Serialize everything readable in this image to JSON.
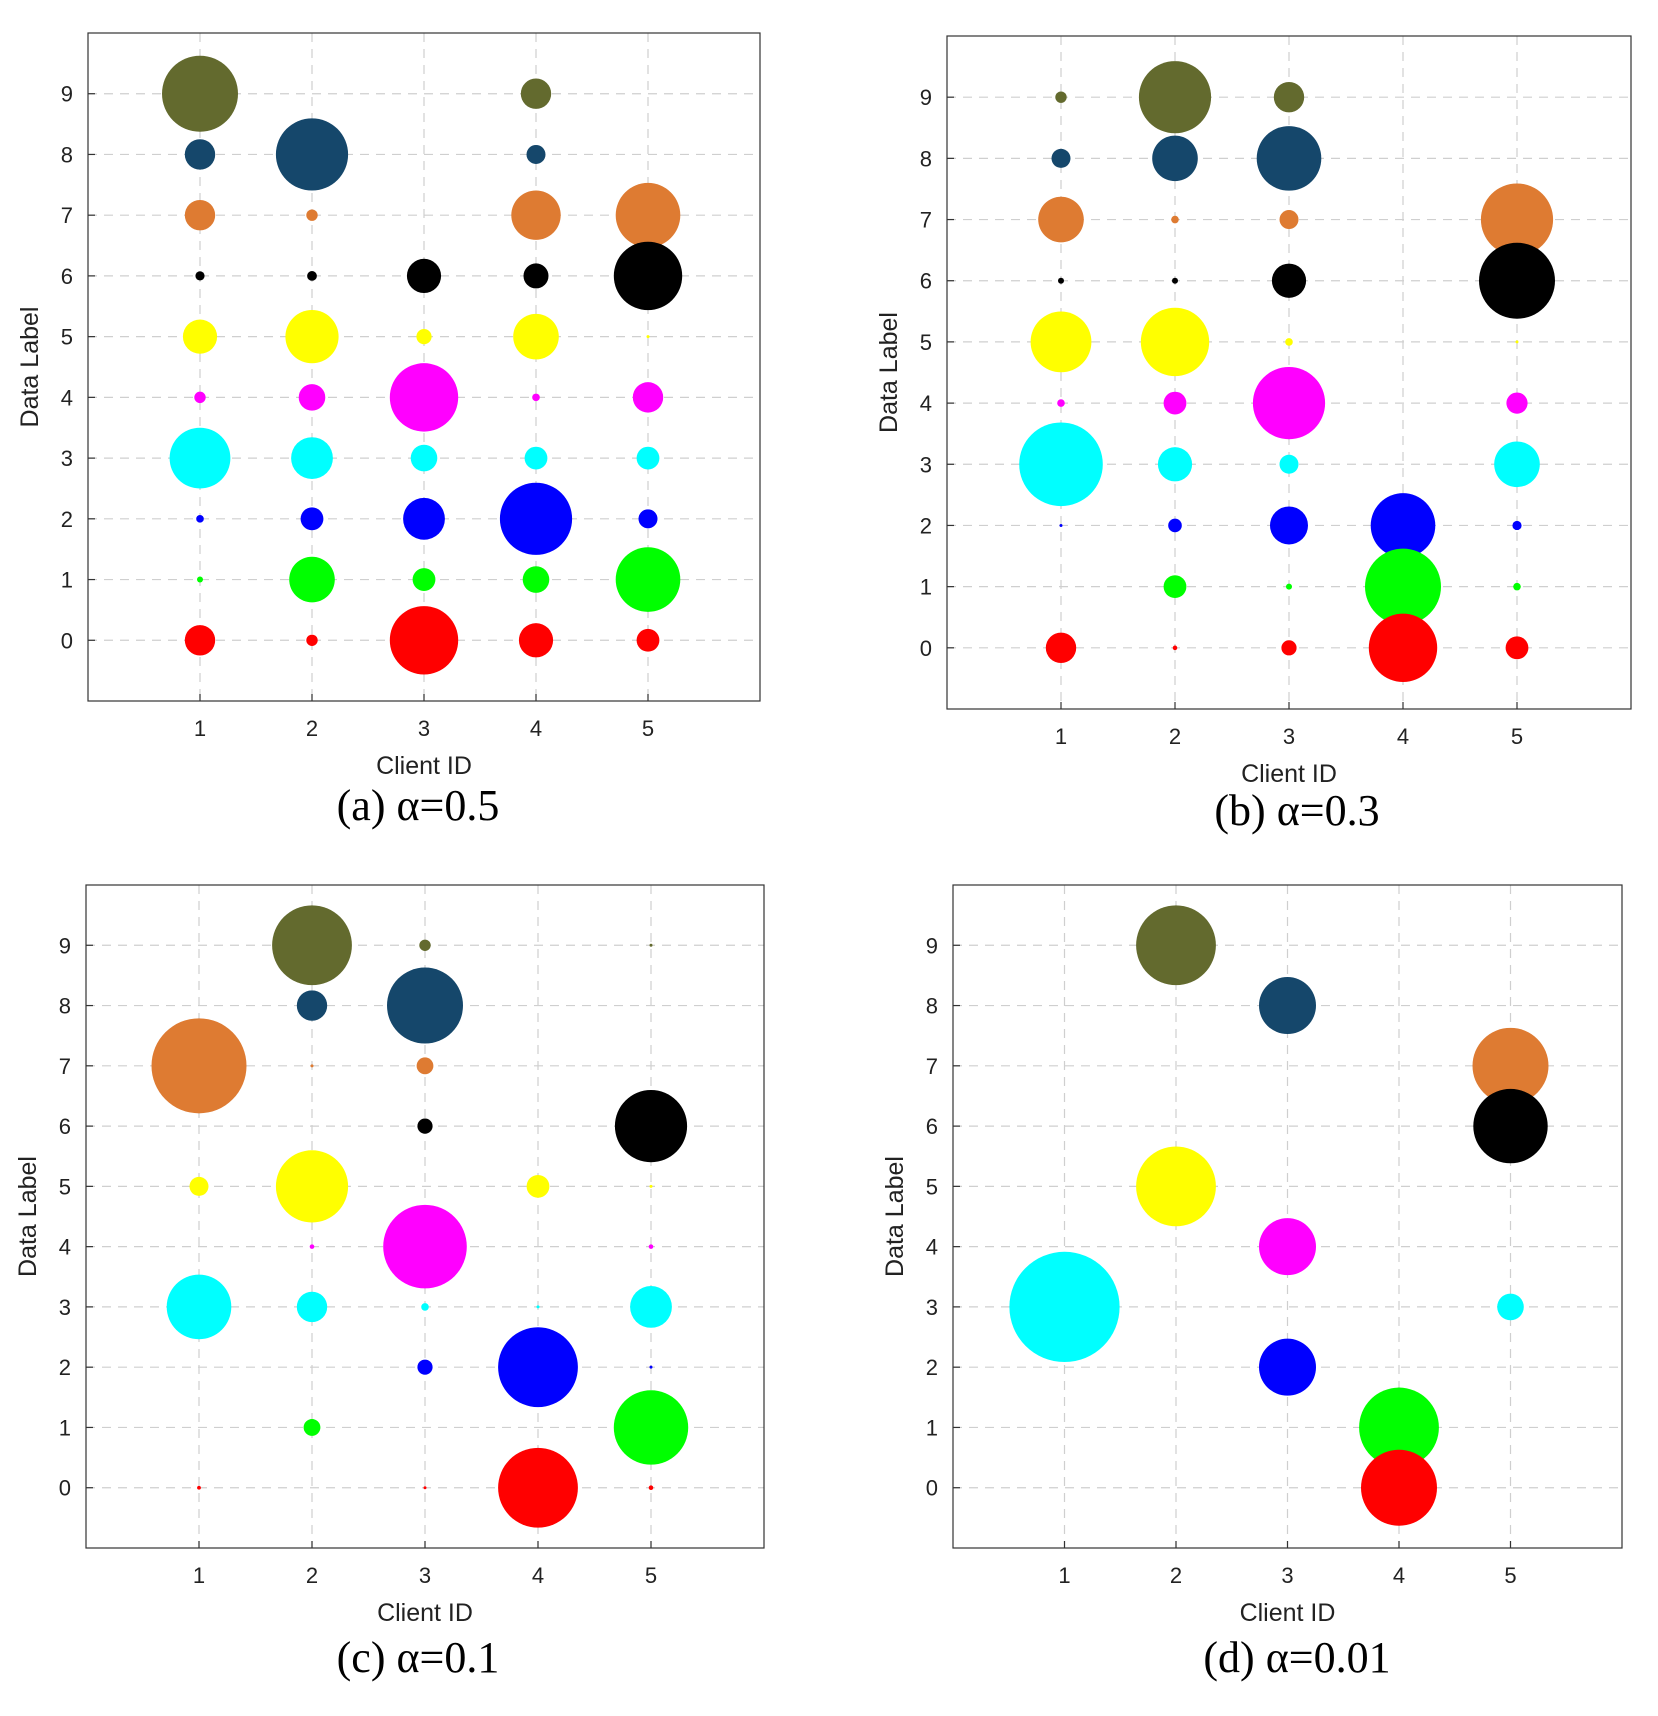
{
  "colors": {
    "0": "#ff0000",
    "1": "#00ff00",
    "2": "#0000ff",
    "3": "#00ffff",
    "4": "#ff00ff",
    "5": "#ffff00",
    "6": "#000000",
    "7": "#de7b32",
    "8": "#15476b",
    "9": "#636a2e"
  },
  "chart_data": [
    {
      "type": "scatter",
      "caption": "(a) α=0.5",
      "xlabel": "Client ID",
      "ylabel": "Data Label",
      "x_ticks": [
        "1",
        "2",
        "3",
        "4",
        "5"
      ],
      "y_ticks": [
        "0",
        "1",
        "2",
        "3",
        "4",
        "5",
        "6",
        "7",
        "8",
        "9"
      ],
      "xlim": [
        0,
        6
      ],
      "ylim": [
        -1,
        10
      ],
      "grid": true,
      "size_encoding": "marker size = relative share of each label on a client",
      "points": [
        {
          "client": 1,
          "label": 9,
          "size": 1.0
        },
        {
          "client": 1,
          "label": 8,
          "size": 0.4
        },
        {
          "client": 1,
          "label": 7,
          "size": 0.4
        },
        {
          "client": 1,
          "label": 6,
          "size": 0.12
        },
        {
          "client": 1,
          "label": 5,
          "size": 0.45
        },
        {
          "client": 1,
          "label": 4,
          "size": 0.15
        },
        {
          "client": 1,
          "label": 3,
          "size": 0.8
        },
        {
          "client": 1,
          "label": 2,
          "size": 0.1
        },
        {
          "client": 1,
          "label": 1,
          "size": 0.08
        },
        {
          "client": 1,
          "label": 0,
          "size": 0.4
        },
        {
          "client": 2,
          "label": 8,
          "size": 0.95
        },
        {
          "client": 2,
          "label": 7,
          "size": 0.15
        },
        {
          "client": 2,
          "label": 6,
          "size": 0.13
        },
        {
          "client": 2,
          "label": 5,
          "size": 0.7
        },
        {
          "client": 2,
          "label": 4,
          "size": 0.35
        },
        {
          "client": 2,
          "label": 3,
          "size": 0.55
        },
        {
          "client": 2,
          "label": 2,
          "size": 0.3
        },
        {
          "client": 2,
          "label": 1,
          "size": 0.6
        },
        {
          "client": 2,
          "label": 0,
          "size": 0.15
        },
        {
          "client": 3,
          "label": 6,
          "size": 0.45
        },
        {
          "client": 3,
          "label": 5,
          "size": 0.2
        },
        {
          "client": 3,
          "label": 4,
          "size": 0.9
        },
        {
          "client": 3,
          "label": 3,
          "size": 0.35
        },
        {
          "client": 3,
          "label": 2,
          "size": 0.55
        },
        {
          "client": 3,
          "label": 1,
          "size": 0.3
        },
        {
          "client": 3,
          "label": 0,
          "size": 0.9
        },
        {
          "client": 4,
          "label": 9,
          "size": 0.4
        },
        {
          "client": 4,
          "label": 8,
          "size": 0.25
        },
        {
          "client": 4,
          "label": 7,
          "size": 0.65
        },
        {
          "client": 4,
          "label": 6,
          "size": 0.33
        },
        {
          "client": 4,
          "label": 5,
          "size": 0.6
        },
        {
          "client": 4,
          "label": 4,
          "size": 0.1
        },
        {
          "client": 4,
          "label": 3,
          "size": 0.3
        },
        {
          "client": 4,
          "label": 2,
          "size": 0.95
        },
        {
          "client": 4,
          "label": 1,
          "size": 0.35
        },
        {
          "client": 4,
          "label": 0,
          "size": 0.45
        },
        {
          "client": 5,
          "label": 7,
          "size": 0.85
        },
        {
          "client": 5,
          "label": 6,
          "size": 0.9
        },
        {
          "client": 5,
          "label": 5,
          "size": 0.03
        },
        {
          "client": 5,
          "label": 4,
          "size": 0.4
        },
        {
          "client": 5,
          "label": 3,
          "size": 0.3
        },
        {
          "client": 5,
          "label": 2,
          "size": 0.25
        },
        {
          "client": 5,
          "label": 1,
          "size": 0.85
        },
        {
          "client": 5,
          "label": 0,
          "size": 0.3
        }
      ]
    },
    {
      "type": "scatter",
      "caption": "(b) α=0.3",
      "xlabel": "Client ID",
      "ylabel": "Data Label",
      "x_ticks": [
        "1",
        "2",
        "3",
        "4",
        "5"
      ],
      "y_ticks": [
        "0",
        "1",
        "2",
        "3",
        "4",
        "5",
        "6",
        "7",
        "8",
        "9"
      ],
      "xlim": [
        0,
        6
      ],
      "ylim": [
        -1,
        10
      ],
      "grid": true,
      "points": [
        {
          "client": 1,
          "label": 9,
          "size": 0.15
        },
        {
          "client": 1,
          "label": 8,
          "size": 0.25
        },
        {
          "client": 1,
          "label": 7,
          "size": 0.6
        },
        {
          "client": 1,
          "label": 6,
          "size": 0.08
        },
        {
          "client": 1,
          "label": 5,
          "size": 0.8
        },
        {
          "client": 1,
          "label": 4,
          "size": 0.1
        },
        {
          "client": 1,
          "label": 3,
          "size": 1.1
        },
        {
          "client": 1,
          "label": 2,
          "size": 0.04
        },
        {
          "client": 1,
          "label": 0,
          "size": 0.4
        },
        {
          "client": 2,
          "label": 9,
          "size": 0.95
        },
        {
          "client": 2,
          "label": 8,
          "size": 0.6
        },
        {
          "client": 2,
          "label": 7,
          "size": 0.1
        },
        {
          "client": 2,
          "label": 6,
          "size": 0.08
        },
        {
          "client": 2,
          "label": 5,
          "size": 0.9
        },
        {
          "client": 2,
          "label": 4,
          "size": 0.3
        },
        {
          "client": 2,
          "label": 3,
          "size": 0.45
        },
        {
          "client": 2,
          "label": 2,
          "size": 0.18
        },
        {
          "client": 2,
          "label": 1,
          "size": 0.3
        },
        {
          "client": 2,
          "label": 0,
          "size": 0.06
        },
        {
          "client": 3,
          "label": 9,
          "size": 0.4
        },
        {
          "client": 3,
          "label": 8,
          "size": 0.85
        },
        {
          "client": 3,
          "label": 7,
          "size": 0.25
        },
        {
          "client": 3,
          "label": 6,
          "size": 0.45
        },
        {
          "client": 3,
          "label": 5,
          "size": 0.1
        },
        {
          "client": 3,
          "label": 4,
          "size": 0.95
        },
        {
          "client": 3,
          "label": 3,
          "size": 0.25
        },
        {
          "client": 3,
          "label": 2,
          "size": 0.5
        },
        {
          "client": 3,
          "label": 1,
          "size": 0.08
        },
        {
          "client": 3,
          "label": 0,
          "size": 0.2
        },
        {
          "client": 4,
          "label": 2,
          "size": 0.85
        },
        {
          "client": 4,
          "label": 1,
          "size": 1.0
        },
        {
          "client": 4,
          "label": 0,
          "size": 0.9
        },
        {
          "client": 5,
          "label": 7,
          "size": 0.95
        },
        {
          "client": 5,
          "label": 6,
          "size": 1.0
        },
        {
          "client": 5,
          "label": 5,
          "size": 0.02
        },
        {
          "client": 5,
          "label": 4,
          "size": 0.28
        },
        {
          "client": 5,
          "label": 3,
          "size": 0.6
        },
        {
          "client": 5,
          "label": 2,
          "size": 0.12
        },
        {
          "client": 5,
          "label": 1,
          "size": 0.1
        },
        {
          "client": 5,
          "label": 0,
          "size": 0.3
        }
      ]
    },
    {
      "type": "scatter",
      "caption": "(c) α=0.1",
      "xlabel": "Client ID",
      "ylabel": "Data Label",
      "x_ticks": [
        "1",
        "2",
        "3",
        "4",
        "5"
      ],
      "y_ticks": [
        "0",
        "1",
        "2",
        "3",
        "4",
        "5",
        "6",
        "7",
        "8",
        "9"
      ],
      "xlim": [
        0,
        6
      ],
      "ylim": [
        -1,
        10
      ],
      "grid": true,
      "points": [
        {
          "client": 1,
          "label": 7,
          "size": 1.25
        },
        {
          "client": 1,
          "label": 5,
          "size": 0.25
        },
        {
          "client": 1,
          "label": 3,
          "size": 0.85
        },
        {
          "client": 1,
          "label": 0,
          "size": 0.05
        },
        {
          "client": 2,
          "label": 9,
          "size": 1.05
        },
        {
          "client": 2,
          "label": 8,
          "size": 0.4
        },
        {
          "client": 2,
          "label": 7,
          "size": 0.04
        },
        {
          "client": 2,
          "label": 5,
          "size": 0.95
        },
        {
          "client": 2,
          "label": 4,
          "size": 0.06
        },
        {
          "client": 2,
          "label": 3,
          "size": 0.4
        },
        {
          "client": 2,
          "label": 1,
          "size": 0.22
        },
        {
          "client": 3,
          "label": 9,
          "size": 0.15
        },
        {
          "client": 3,
          "label": 8,
          "size": 1.0
        },
        {
          "client": 3,
          "label": 7,
          "size": 0.22
        },
        {
          "client": 3,
          "label": 6,
          "size": 0.2
        },
        {
          "client": 3,
          "label": 4,
          "size": 1.1
        },
        {
          "client": 3,
          "label": 3,
          "size": 0.1
        },
        {
          "client": 3,
          "label": 2,
          "size": 0.2
        },
        {
          "client": 3,
          "label": 0,
          "size": 0.04
        },
        {
          "client": 4,
          "label": 5,
          "size": 0.3
        },
        {
          "client": 4,
          "label": 3,
          "size": 0.04
        },
        {
          "client": 4,
          "label": 2,
          "size": 1.05
        },
        {
          "client": 4,
          "label": 0,
          "size": 1.05
        },
        {
          "client": 5,
          "label": 9,
          "size": 0.03
        },
        {
          "client": 5,
          "label": 6,
          "size": 0.95
        },
        {
          "client": 5,
          "label": 5,
          "size": 0.03
        },
        {
          "client": 5,
          "label": 4,
          "size": 0.06
        },
        {
          "client": 5,
          "label": 3,
          "size": 0.55
        },
        {
          "client": 5,
          "label": 2,
          "size": 0.04
        },
        {
          "client": 5,
          "label": 1,
          "size": 0.98
        },
        {
          "client": 5,
          "label": 0,
          "size": 0.06
        }
      ]
    },
    {
      "type": "scatter",
      "caption": "(d) α=0.01",
      "xlabel": "Client ID",
      "ylabel": "Data Label",
      "x_ticks": [
        "1",
        "2",
        "3",
        "4",
        "5"
      ],
      "y_ticks": [
        "0",
        "1",
        "2",
        "3",
        "4",
        "5",
        "6",
        "7",
        "8",
        "9"
      ],
      "xlim": [
        0,
        6
      ],
      "ylim": [
        -1,
        10
      ],
      "grid": true,
      "points": [
        {
          "client": 1,
          "label": 3,
          "size": 1.45
        },
        {
          "client": 2,
          "label": 9,
          "size": 1.05
        },
        {
          "client": 2,
          "label": 5,
          "size": 1.05
        },
        {
          "client": 3,
          "label": 8,
          "size": 0.75
        },
        {
          "client": 3,
          "label": 4,
          "size": 0.75
        },
        {
          "client": 3,
          "label": 2,
          "size": 0.75
        },
        {
          "client": 4,
          "label": 1,
          "size": 1.05
        },
        {
          "client": 4,
          "label": 0,
          "size": 1.0
        },
        {
          "client": 5,
          "label": 7,
          "size": 1.0
        },
        {
          "client": 5,
          "label": 6,
          "size": 0.98
        },
        {
          "client": 5,
          "label": 3,
          "size": 0.35
        }
      ]
    }
  ]
}
